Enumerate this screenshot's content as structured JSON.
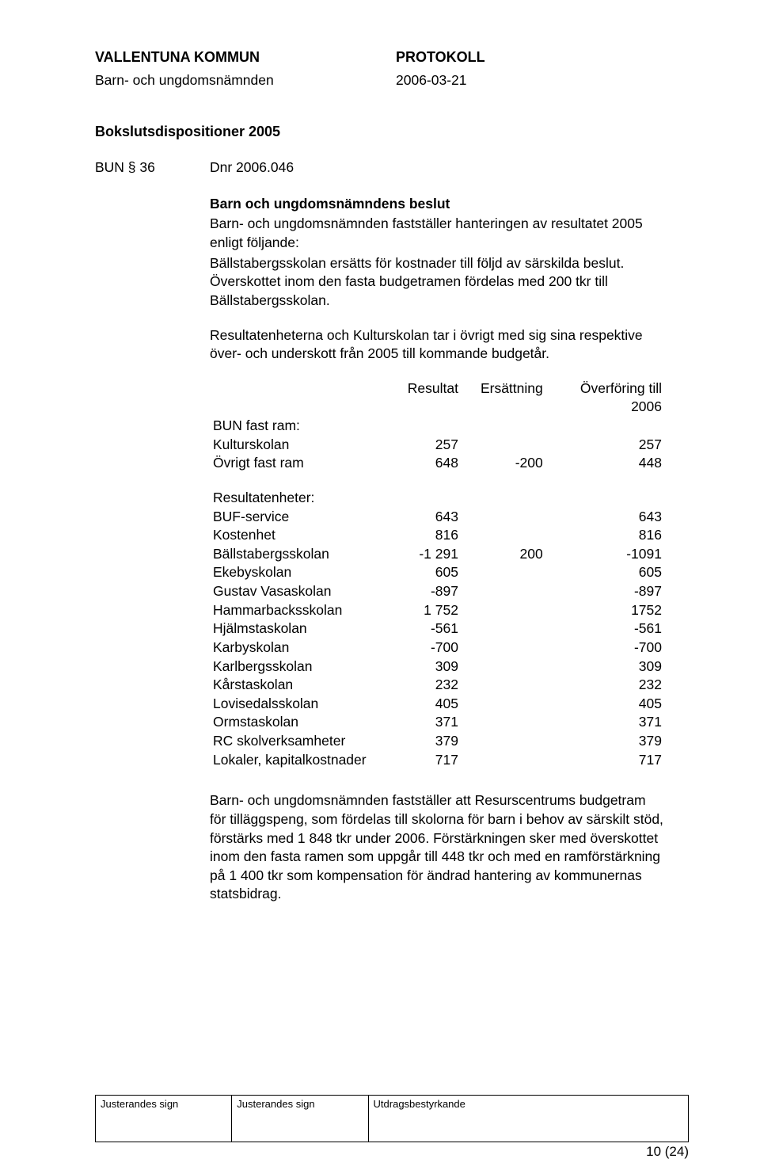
{
  "header": {
    "org": "VALLENTUNA KOMMUN",
    "doc_type": "PROTOKOLL",
    "committee": "Barn- och ungdomsnämnden",
    "date": "2006-03-21"
  },
  "section_title": "Bokslutsdispositioner 2005",
  "bun": {
    "label": "BUN § 36",
    "dnr": "Dnr 2006.046"
  },
  "decision_heading": "Barn och ungdomsnämndens beslut",
  "para1": "Barn- och ungdomsnämnden fastställer hanteringen av resultatet 2005 enligt följande:",
  "para2": "Bällstabergsskolan ersätts för kostnader till följd av särskilda beslut. Överskottet inom den fasta budgetramen fördelas med 200 tkr till Bällstabergsskolan.",
  "para3": "Resultatenheterna och Kulturskolan tar i övrigt med sig sina respektive över- och underskott från 2005 till kommande budgetår.",
  "table_headers": {
    "c1": "Resultat",
    "c2": "Ersättning",
    "c3": "Överföring till 2006"
  },
  "fast_ram_heading": "BUN fast ram:",
  "fast_ram_rows": [
    {
      "label": "Kulturskolan",
      "r": "257",
      "e": "",
      "o": "257"
    },
    {
      "label": "Övrigt fast ram",
      "r": "648",
      "e": "-200",
      "o": "448"
    }
  ],
  "result_heading": "Resultatenheter:",
  "result_rows": [
    {
      "label": "BUF-service",
      "r": "643",
      "e": "",
      "o": "643"
    },
    {
      "label": "Kostenhet",
      "r": "816",
      "e": "",
      "o": "816"
    },
    {
      "label": "Bällstabergsskolan",
      "r": "-1 291",
      "e": "200",
      "o": "-1091"
    },
    {
      "label": "Ekebyskolan",
      "r": "605",
      "e": "",
      "o": "605"
    },
    {
      "label": "Gustav Vasaskolan",
      "r": "-897",
      "e": "",
      "o": "-897"
    },
    {
      "label": "Hammarbacksskolan",
      "r": "1 752",
      "e": "",
      "o": "1752"
    },
    {
      "label": "Hjälmstaskolan",
      "r": "-561",
      "e": "",
      "o": "-561"
    },
    {
      "label": "Karbyskolan",
      "r": "-700",
      "e": "",
      "o": "-700"
    },
    {
      "label": "Karlbergsskolan",
      "r": "309",
      "e": "",
      "o": "309"
    },
    {
      "label": "Kårstaskolan",
      "r": "232",
      "e": "",
      "o": "232"
    },
    {
      "label": "Lovisedalsskolan",
      "r": "405",
      "e": "",
      "o": "405"
    },
    {
      "label": "Ormstaskolan",
      "r": "371",
      "e": "",
      "o": "371"
    },
    {
      "label": "RC skolverksamheter",
      "r": "379",
      "e": "",
      "o": "379"
    },
    {
      "label": "Lokaler, kapitalkostnader",
      "r": "717",
      "e": "",
      "o": "717"
    }
  ],
  "para4": "Barn- och ungdomsnämnden fastställer att Resurscentrums budgetram för tilläggspeng, som fördelas till skolorna för barn i behov av särskilt stöd, förstärks med 1 848 tkr under 2006. Förstärkningen sker med överskottet inom den fasta ramen som uppgår till 448 tkr och med en ramförstärkning på 1 400 tkr som kompensation för ändrad hantering av kommunernas statsbidrag.",
  "footer": {
    "c1": "Justerandes sign",
    "c2": "Justerandes sign",
    "c3": "Utdragsbestyrkande"
  },
  "page_number": "10 (24)"
}
